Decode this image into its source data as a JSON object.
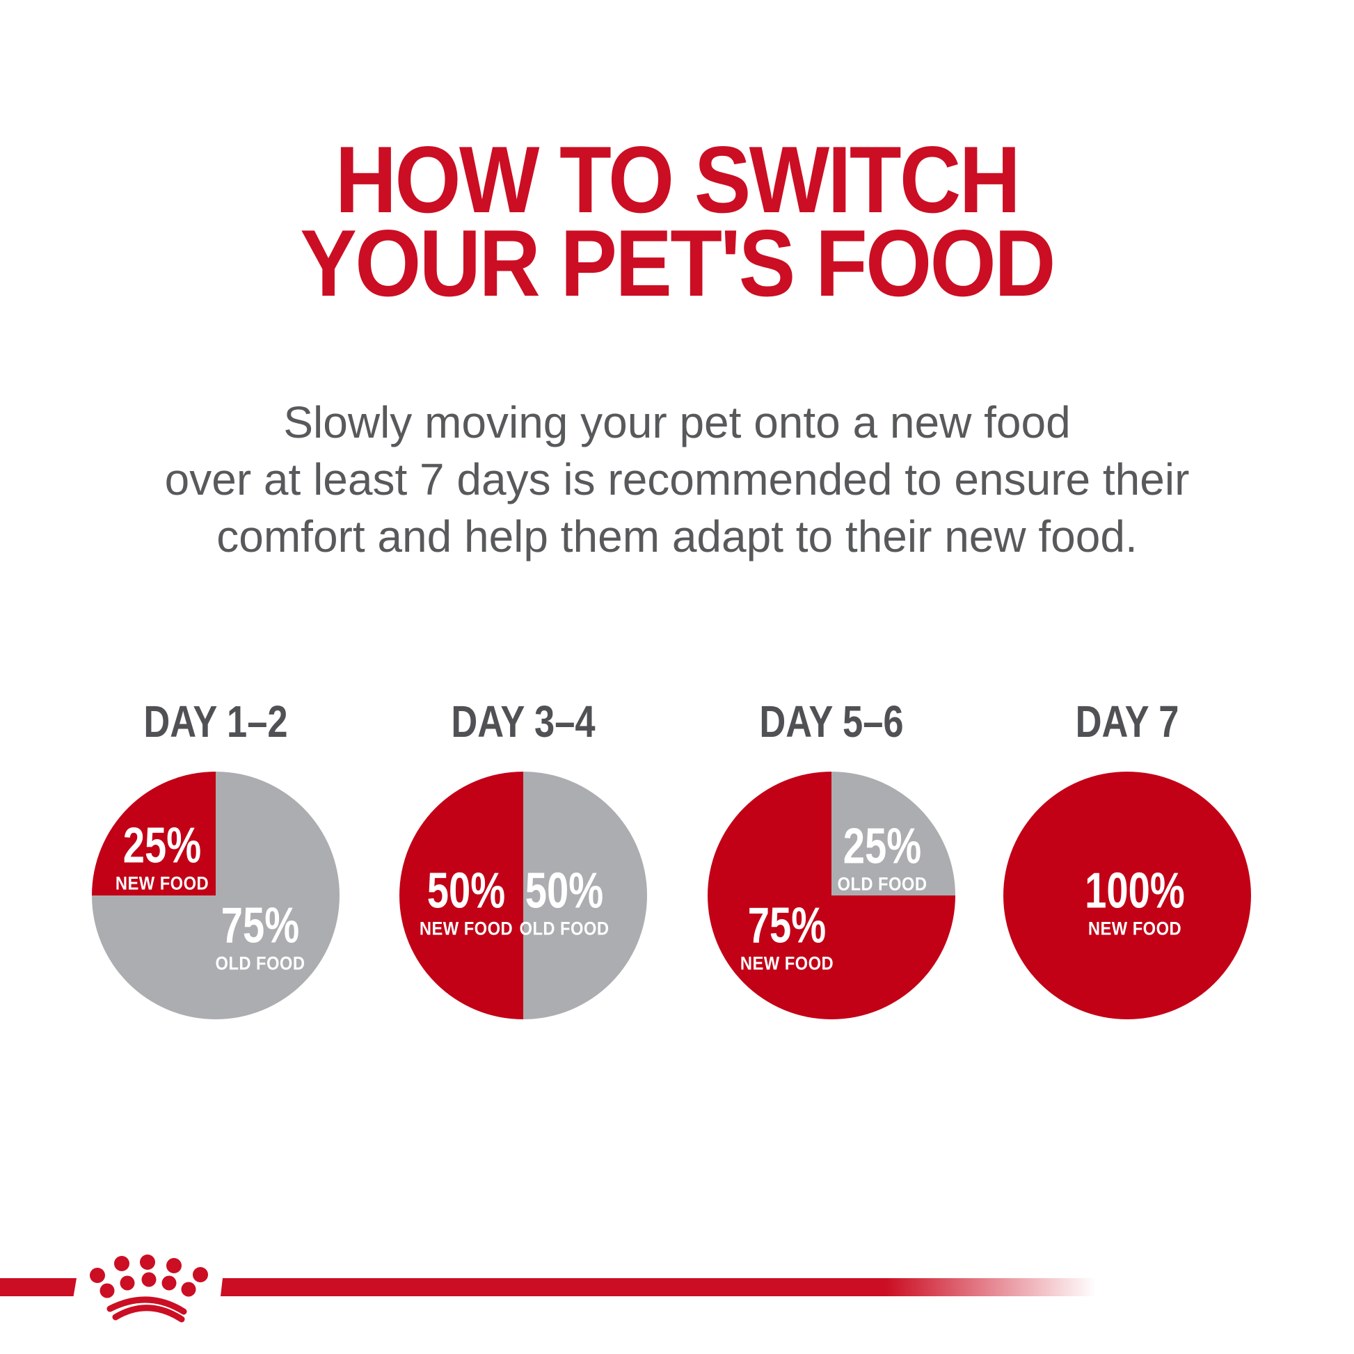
{
  "title": {
    "line1": "HOW TO SWITCH",
    "line2": "YOUR PET'S FOOD"
  },
  "subtitle": {
    "line1": "Slowly moving your pet onto a new food",
    "line2": "over at least 7 days is recommended to ensure their",
    "line3": "comfort and help them adapt to their new food."
  },
  "colors": {
    "brand_red": "#cb0e23",
    "pie_red": "#c20016",
    "pie_gray": "#abadb0",
    "subtitle_gray": "#58595b",
    "day_label_gray": "#4f5154",
    "slice_text_white": "#ffffff"
  },
  "chart_data": [
    {
      "type": "pie",
      "title": "DAY 1–2",
      "legend_position": "inside",
      "slices": [
        {
          "name": "NEW FOOD",
          "pct": "25%",
          "value": 25,
          "color": "#c20016"
        },
        {
          "name": "OLD FOOD",
          "pct": "75%",
          "value": 75,
          "color": "#abadb0"
        }
      ]
    },
    {
      "type": "pie",
      "title": "DAY 3–4",
      "legend_position": "inside",
      "slices": [
        {
          "name": "NEW FOOD",
          "pct": "50%",
          "value": 50,
          "color": "#c20016"
        },
        {
          "name": "OLD FOOD",
          "pct": "50%",
          "value": 50,
          "color": "#abadb0"
        }
      ]
    },
    {
      "type": "pie",
      "title": "DAY 5–6",
      "legend_position": "inside",
      "slices": [
        {
          "name": "NEW FOOD",
          "pct": "75%",
          "value": 75,
          "color": "#c20016"
        },
        {
          "name": "OLD FOOD",
          "pct": "25%",
          "value": 25,
          "color": "#abadb0"
        }
      ]
    },
    {
      "type": "pie",
      "title": "DAY 7",
      "legend_position": "inside",
      "slices": [
        {
          "name": "NEW FOOD",
          "pct": "100%",
          "value": 100,
          "color": "#c20016"
        }
      ]
    }
  ],
  "footer": {
    "logo": "royal-canin-crown-logo"
  }
}
